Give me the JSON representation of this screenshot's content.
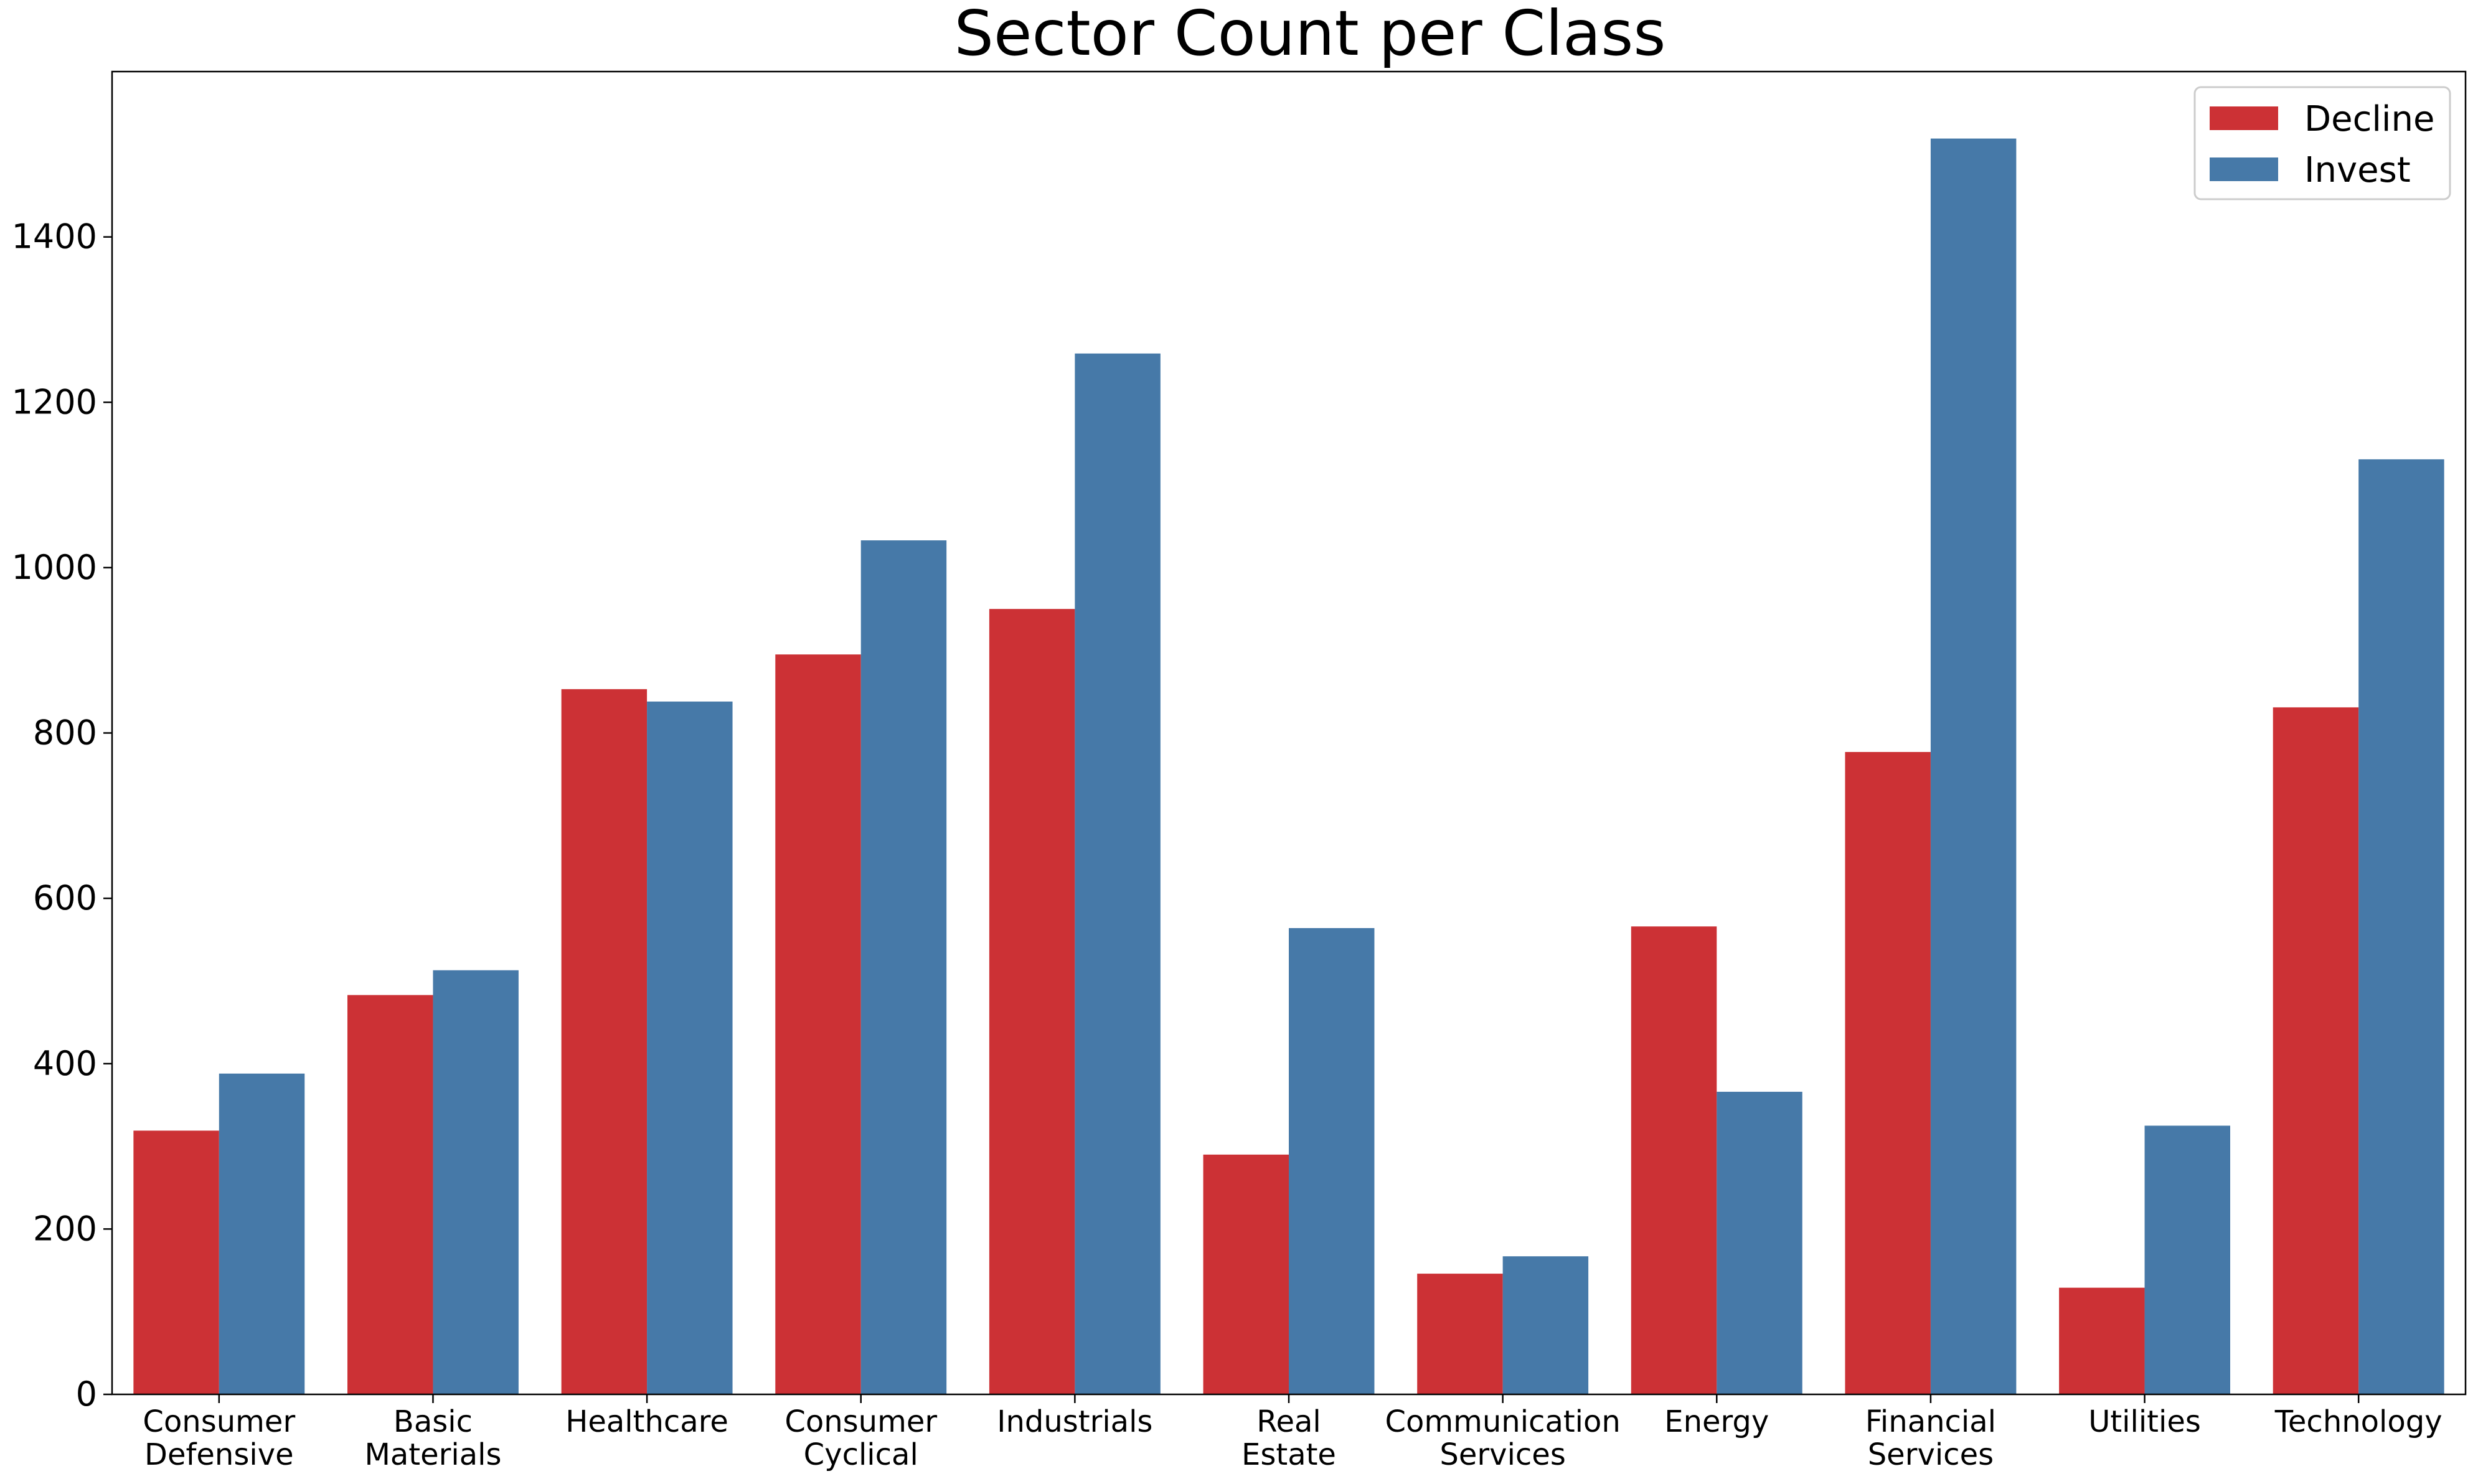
{
  "chart_data": {
    "type": "bar",
    "title": "Sector Count per Class",
    "xlabel": "",
    "ylabel": "",
    "categories": [
      [
        "Consumer",
        "Defensive"
      ],
      [
        "Basic",
        "Materials"
      ],
      [
        "Healthcare"
      ],
      [
        "Consumer",
        "Cyclical"
      ],
      [
        "Industrials"
      ],
      [
        "Real",
        "Estate"
      ],
      [
        "Communication",
        "Services"
      ],
      [
        "Energy"
      ],
      [
        "Financial",
        "Services"
      ],
      [
        "Utilities"
      ],
      [
        "Technology"
      ]
    ],
    "series": [
      {
        "name": "Decline",
        "color": "#cc3135",
        "values": [
          319,
          483,
          853,
          895,
          950,
          290,
          146,
          566,
          777,
          129,
          831
        ]
      },
      {
        "name": "Invest",
        "color": "#4679a8",
        "values": [
          388,
          513,
          838,
          1033,
          1259,
          564,
          167,
          366,
          1519,
          325,
          1131
        ]
      }
    ],
    "ylim": [
      0,
      1600
    ],
    "yticks": [
      0,
      200,
      400,
      600,
      800,
      1000,
      1200,
      1400
    ],
    "grid": false,
    "legend_position": "top-right"
  }
}
